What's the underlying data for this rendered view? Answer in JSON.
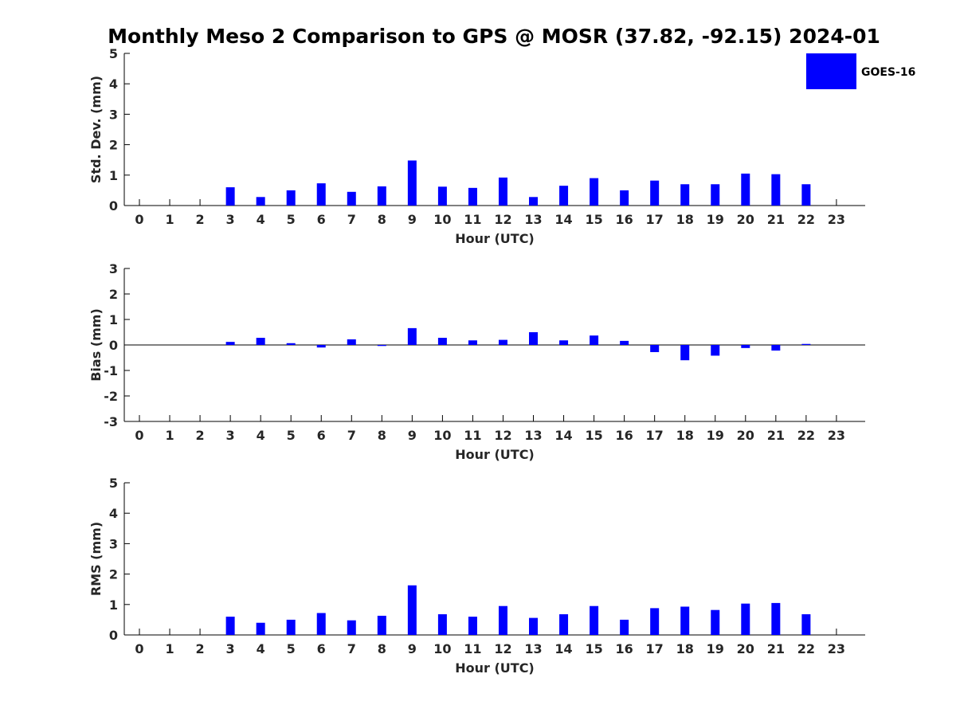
{
  "title": "Monthly Meso 2 Comparison to GPS @ MOSR (37.82, -92.15) 2024-01",
  "legend": {
    "label": "GOES-16",
    "color": "#0000FF"
  },
  "chart_data": [
    {
      "type": "bar",
      "name": "stddev",
      "ylabel": "Std. Dev. (mm)",
      "xlabel": "Hour (UTC)",
      "ylim": [
        0,
        5
      ],
      "yticks": [
        0,
        1,
        2,
        3,
        4,
        5
      ],
      "categories": [
        "0",
        "1",
        "2",
        "3",
        "4",
        "5",
        "6",
        "7",
        "8",
        "9",
        "10",
        "11",
        "12",
        "13",
        "14",
        "15",
        "16",
        "17",
        "18",
        "19",
        "20",
        "21",
        "22",
        "23"
      ],
      "series": [
        {
          "name": "GOES-16",
          "values": [
            null,
            null,
            null,
            0.6,
            0.28,
            0.5,
            0.73,
            0.45,
            0.63,
            1.48,
            0.62,
            0.58,
            0.92,
            0.28,
            0.65,
            0.9,
            0.5,
            0.82,
            0.7,
            0.7,
            1.05,
            1.03,
            0.7,
            null
          ]
        }
      ]
    },
    {
      "type": "bar",
      "name": "bias",
      "ylabel": "Bias (mm)",
      "xlabel": "Hour (UTC)",
      "ylim": [
        -3,
        3
      ],
      "yticks": [
        -3,
        -2,
        -1,
        0,
        1,
        2,
        3
      ],
      "zeroline": true,
      "categories": [
        "0",
        "1",
        "2",
        "3",
        "4",
        "5",
        "6",
        "7",
        "8",
        "9",
        "10",
        "11",
        "12",
        "13",
        "14",
        "15",
        "16",
        "17",
        "18",
        "19",
        "20",
        "21",
        "22",
        "23"
      ],
      "series": [
        {
          "name": "GOES-16",
          "values": [
            null,
            null,
            null,
            0.12,
            0.28,
            0.07,
            -0.1,
            0.22,
            -0.04,
            0.66,
            0.28,
            0.18,
            0.2,
            0.5,
            0.18,
            0.37,
            0.16,
            -0.28,
            -0.6,
            -0.42,
            -0.12,
            -0.22,
            0.04,
            null
          ]
        }
      ]
    },
    {
      "type": "bar",
      "name": "rms",
      "ylabel": "RMS (mm)",
      "xlabel": "Hour (UTC)",
      "ylim": [
        0,
        5
      ],
      "yticks": [
        0,
        1,
        2,
        3,
        4,
        5
      ],
      "categories": [
        "0",
        "1",
        "2",
        "3",
        "4",
        "5",
        "6",
        "7",
        "8",
        "9",
        "10",
        "11",
        "12",
        "13",
        "14",
        "15",
        "16",
        "17",
        "18",
        "19",
        "20",
        "21",
        "22",
        "23"
      ],
      "series": [
        {
          "name": "GOES-16",
          "values": [
            null,
            null,
            null,
            0.6,
            0.4,
            0.5,
            0.72,
            0.48,
            0.63,
            1.63,
            0.68,
            0.6,
            0.95,
            0.56,
            0.68,
            0.95,
            0.5,
            0.88,
            0.93,
            0.82,
            1.03,
            1.05,
            0.68,
            null
          ]
        }
      ]
    }
  ]
}
